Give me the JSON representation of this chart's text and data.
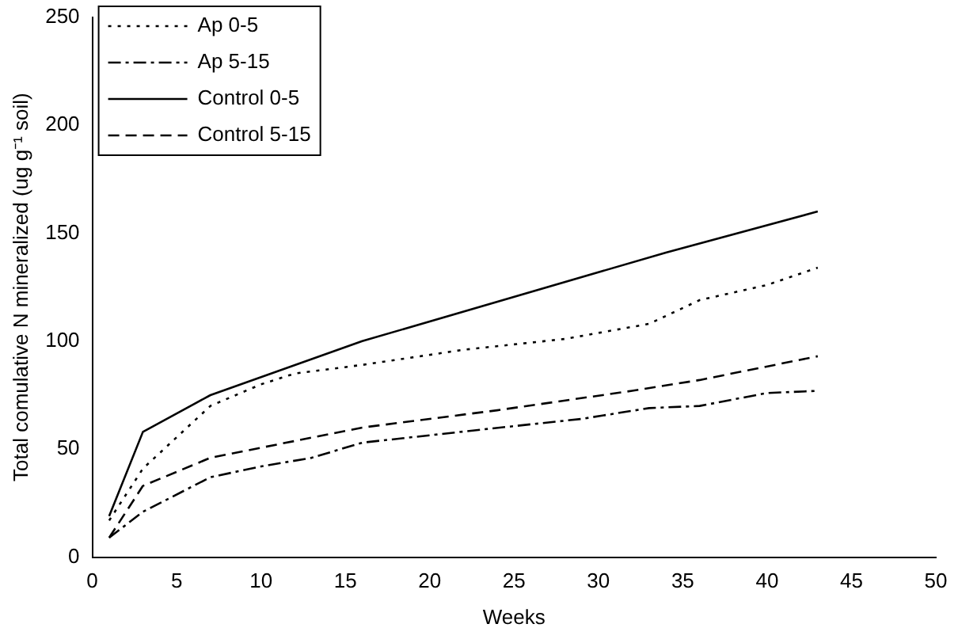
{
  "chart_data": {
    "type": "line",
    "xlabel": "Weeks",
    "ylabel": "Total comulative N mineralized (ug g⁻¹ soil)",
    "xlim": [
      0,
      50
    ],
    "xticks": [
      0,
      5,
      10,
      15,
      20,
      25,
      30,
      35,
      40,
      45,
      50
    ],
    "ylim": [
      0,
      250
    ],
    "yticks": [
      0,
      50,
      100,
      150,
      200,
      250
    ],
    "grid": false,
    "legend": "top left",
    "marker": "none",
    "series": [
      {
        "name": "Ap 0-5",
        "color": "#000000",
        "line_style": "dotted",
        "x": [
          1,
          3,
          7,
          10,
          12,
          16,
          22,
          28,
          33,
          36,
          40,
          43
        ],
        "values": [
          17,
          41,
          70,
          80,
          85,
          89,
          96,
          101,
          108,
          119,
          126,
          134
        ]
      },
      {
        "name": "Ap 5-15",
        "color": "#000000",
        "line_style": "dashdot",
        "x": [
          1,
          3,
          7,
          10,
          13,
          16,
          23,
          29,
          33,
          36,
          40,
          43
        ],
        "values": [
          9,
          21,
          37,
          42,
          46,
          53,
          59,
          64,
          69,
          70,
          76,
          77
        ]
      },
      {
        "name": "Control 0-5",
        "color": "#000000",
        "line_style": "solid",
        "x": [
          1,
          3,
          7,
          16,
          34,
          43
        ],
        "values": [
          19,
          58,
          75,
          100,
          141,
          160
        ]
      },
      {
        "name": "Control 5-15",
        "color": "#000000",
        "line_style": "dashed",
        "x": [
          1,
          3,
          7,
          16,
          24,
          32,
          36,
          43
        ],
        "values": [
          9,
          33,
          46,
          60,
          68,
          77,
          82,
          93
        ]
      }
    ]
  }
}
